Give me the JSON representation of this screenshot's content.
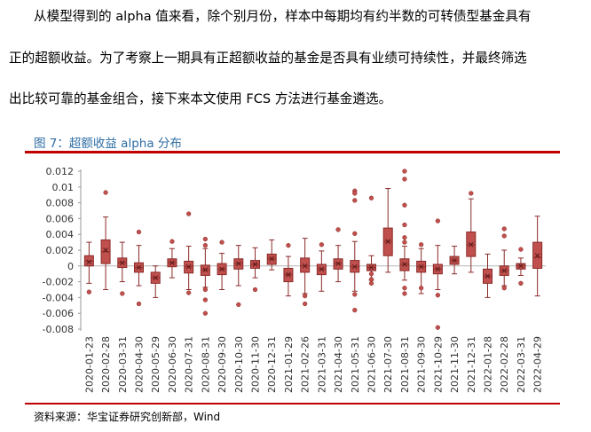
{
  "paragraph": {
    "line1": "从模型得到的 alpha 值来看，除个别月份，样本中每期均有约半数的可转债型基金具有",
    "line2": "正的超额收益。为了考察上一期具有正超额收益的基金是否具有业绩可持续性，并最终筛选",
    "line3": "出比较可靠的基金组合，接下来本文使用 FCS 方法进行基金遴选。"
  },
  "figure": {
    "title": "图 7：超额收益 alpha 分布",
    "source": "资料来源：华宝证券研究创新部，Wind"
  },
  "colors": {
    "accent": "#c00000",
    "box_fill": "#c0504d",
    "box_edge": "#8b2a28",
    "title_blue": "#2e6da4"
  },
  "chart_data": {
    "type": "boxplot",
    "title": "",
    "xlabel": "",
    "ylabel": "",
    "ylim": [
      -0.008,
      0.012
    ],
    "yticks": [
      "0.012",
      "0.01",
      "0.008",
      "0.006",
      "0.004",
      "0.002",
      "0",
      "-0.002",
      "-0.004",
      "-0.006",
      "-0.008"
    ],
    "grid": false,
    "categories": [
      "2020-01-23",
      "2020-02-28",
      "2020-03-31",
      "2020-04-30",
      "2020-05-29",
      "2020-06-30",
      "2020-07-31",
      "2020-08-31",
      "2020-09-30",
      "2020-10-30",
      "2020-11-30",
      "2020-12-31",
      "2021-01-29",
      "2021-02-26",
      "2021-03-31",
      "2021-04-30",
      "2021-05-31",
      "2021-06-30",
      "2021-07-30",
      "2021-08-31",
      "2021-09-30",
      "2021-10-29",
      "2021-11-30",
      "2021-12-31",
      "2022-01-28",
      "2022-02-28",
      "2022-03-31",
      "2022-04-29"
    ],
    "boxes": [
      {
        "q1": 0.0,
        "q3": 0.0013,
        "median": 0.0006,
        "mean": 0.0005,
        "wlo": -0.0022,
        "whi": 0.003,
        "outliers": [
          -0.0033
        ]
      },
      {
        "q1": 0.0003,
        "q3": 0.0033,
        "median": 0.0018,
        "mean": 0.002,
        "wlo": -0.003,
        "whi": 0.0062,
        "outliers": [
          0.0093
        ]
      },
      {
        "q1": -0.0002,
        "q3": 0.001,
        "median": 0.0004,
        "mean": 0.0004,
        "wlo": -0.002,
        "whi": 0.003,
        "outliers": [
          -0.0035
        ]
      },
      {
        "q1": -0.0008,
        "q3": 0.0004,
        "median": -0.0002,
        "mean": -0.0002,
        "wlo": -0.0025,
        "whi": 0.0026,
        "outliers": [
          0.0043,
          -0.0048
        ]
      },
      {
        "q1": -0.0022,
        "q3": -0.0008,
        "median": -0.0015,
        "mean": -0.0015,
        "wlo": -0.004,
        "whi": 0.0,
        "outliers": []
      },
      {
        "q1": -0.0001,
        "q3": 0.0009,
        "median": 0.0004,
        "mean": 0.0004,
        "wlo": -0.0015,
        "whi": 0.0022,
        "outliers": [
          0.0031
        ]
      },
      {
        "q1": -0.0009,
        "q3": 0.0006,
        "median": -0.0001,
        "mean": -0.0001,
        "wlo": -0.003,
        "whi": 0.0025,
        "outliers": [
          0.0066,
          -0.0034
        ]
      },
      {
        "q1": -0.0012,
        "q3": 0.0001,
        "median": -0.0005,
        "mean": -0.0005,
        "wlo": -0.0027,
        "whi": 0.0022,
        "outliers": [
          0.0034,
          0.0026,
          -0.003,
          -0.0043,
          -0.006
        ]
      },
      {
        "q1": -0.0011,
        "q3": 0.0003,
        "median": -0.0004,
        "mean": -0.0004,
        "wlo": -0.003,
        "whi": 0.0016,
        "outliers": [
          0.003
        ]
      },
      {
        "q1": -0.0004,
        "q3": 0.0009,
        "median": 0.0003,
        "mean": 0.0003,
        "wlo": -0.0025,
        "whi": 0.0026,
        "outliers": [
          -0.0049
        ]
      },
      {
        "q1": -0.0003,
        "q3": 0.0007,
        "median": 0.0002,
        "mean": 0.0002,
        "wlo": -0.0015,
        "whi": 0.0023,
        "outliers": [
          -0.003
        ]
      },
      {
        "q1": 0.0002,
        "q3": 0.0015,
        "median": 0.0009,
        "mean": 0.0009,
        "wlo": -0.0005,
        "whi": 0.0033,
        "outliers": []
      },
      {
        "q1": -0.002,
        "q3": -0.0003,
        "median": -0.0011,
        "mean": -0.0011,
        "wlo": -0.0038,
        "whi": 0.0012,
        "outliers": [
          0.0026
        ]
      },
      {
        "q1": -0.0008,
        "q3": 0.001,
        "median": 0.0,
        "mean": 0.0,
        "wlo": -0.0035,
        "whi": 0.0035,
        "outliers": [
          -0.0038,
          -0.0048
        ]
      },
      {
        "q1": -0.0011,
        "q3": 0.0002,
        "median": -0.0004,
        "mean": -0.0004,
        "wlo": -0.0032,
        "whi": 0.0019,
        "outliers": [
          0.0027
        ]
      },
      {
        "q1": -0.0004,
        "q3": 0.0009,
        "median": 0.0003,
        "mean": 0.0003,
        "wlo": -0.002,
        "whi": 0.0026,
        "outliers": [
          0.0046
        ]
      },
      {
        "q1": -0.0008,
        "q3": 0.0007,
        "median": -0.0001,
        "mean": -0.0001,
        "wlo": -0.0032,
        "whi": 0.0031,
        "outliers": [
          0.0095,
          0.0092,
          0.0083,
          0.0041,
          -0.0036,
          -0.0056
        ]
      },
      {
        "q1": -0.0006,
        "q3": 0.0002,
        "median": -0.0002,
        "mean": -0.0002,
        "wlo": -0.0018,
        "whi": 0.0013,
        "outliers": [
          0.0086,
          -0.001,
          -0.0017,
          -0.0022
        ]
      },
      {
        "q1": 0.0013,
        "q3": 0.0048,
        "median": 0.0031,
        "mean": 0.0031,
        "wlo": -0.0008,
        "whi": 0.0098,
        "outliers": []
      },
      {
        "q1": -0.0006,
        "q3": 0.0009,
        "median": 0.0002,
        "mean": 0.0002,
        "wlo": -0.0018,
        "whi": 0.0025,
        "outliers": [
          0.012,
          0.011,
          0.0077,
          0.0052,
          0.0036,
          0.003,
          -0.0028,
          -0.0035
        ]
      },
      {
        "q1": -0.0008,
        "q3": 0.0006,
        "median": -0.0001,
        "mean": -0.0001,
        "wlo": -0.0035,
        "whi": 0.0022,
        "outliers": [
          0.0027,
          -0.0028
        ]
      },
      {
        "q1": -0.001,
        "q3": 0.0002,
        "median": -0.0004,
        "mean": -0.0004,
        "wlo": -0.003,
        "whi": 0.0026,
        "outliers": [
          0.0057,
          -0.0037,
          -0.0078
        ]
      },
      {
        "q1": 0.0002,
        "q3": 0.0012,
        "median": 0.0007,
        "mean": 0.0007,
        "wlo": -0.001,
        "whi": 0.0025,
        "outliers": []
      },
      {
        "q1": 0.0012,
        "q3": 0.0043,
        "median": 0.0027,
        "mean": 0.0027,
        "wlo": -0.0008,
        "whi": 0.0085,
        "outliers": [
          0.0092
        ]
      },
      {
        "q1": -0.0022,
        "q3": -0.0004,
        "median": -0.0013,
        "mean": -0.0013,
        "wlo": -0.004,
        "whi": 0.0015,
        "outliers": []
      },
      {
        "q1": -0.0012,
        "q3": 0.0,
        "median": -0.0006,
        "mean": -0.0006,
        "wlo": -0.0025,
        "whi": 0.002,
        "outliers": [
          0.0047,
          0.0038,
          -0.0028
        ]
      },
      {
        "q1": -0.0004,
        "q3": 0.0003,
        "median": 0.0,
        "mean": 0.0,
        "wlo": -0.0012,
        "whi": 0.001,
        "outliers": [
          0.0021,
          -0.0022
        ]
      },
      {
        "q1": -0.0003,
        "q3": 0.003,
        "median": 0.0011,
        "mean": 0.0013,
        "wlo": -0.0038,
        "whi": 0.0063,
        "outliers": []
      }
    ]
  }
}
